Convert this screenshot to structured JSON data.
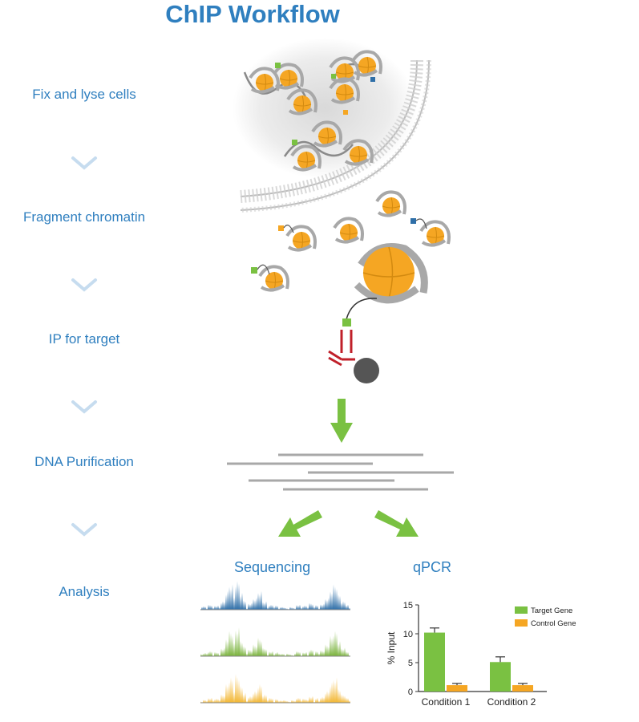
{
  "title": "ChIP Workflow",
  "steps": [
    "Fix and lyse cells",
    "Fragment chromatin",
    "IP for target",
    "DNA Purification",
    "Analysis"
  ],
  "sequencing_label": "Sequencing",
  "qpcr_label": "qPCR",
  "colors": {
    "title_blue": "#2f7fbf",
    "chevron": "#c6dcef",
    "nucleosome": "#f5a623",
    "dna_gray": "#a8a8a8",
    "arrow_green": "#7ac142",
    "antibody_red": "#c0202a",
    "bead": "#555555",
    "track_blue": "#2f6fa8",
    "track_green": "#7ab33c",
    "track_orange": "#f2b632"
  },
  "chart_data": {
    "type": "bar",
    "categories": [
      "Condition 1",
      "Condition 2"
    ],
    "series": [
      {
        "name": "Target Gene",
        "values": [
          10.2,
          5.1
        ],
        "errors": [
          0.8,
          0.9
        ],
        "color": "#7ac142"
      },
      {
        "name": "Control Gene",
        "values": [
          1.1,
          1.1
        ],
        "errors": [
          0.3,
          0.3
        ],
        "color": "#f5a623"
      }
    ],
    "ylabel": "% Input",
    "ylim": [
      0,
      15
    ],
    "yticks": [
      "0",
      "5",
      "10",
      "15"
    ],
    "legend_position": "top-right",
    "grid": false
  }
}
